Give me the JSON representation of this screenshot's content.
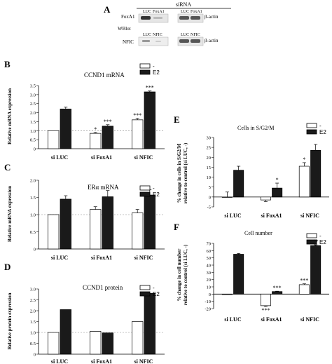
{
  "panel_a": {
    "letter": "A",
    "header": "siRNA",
    "left_label": "WBlot",
    "rows": [
      {
        "target": "FoxA1",
        "lanes": [
          "LUC",
          "FoxA1",
          "LUC",
          "FoxA1"
        ],
        "control": "β-actin"
      },
      {
        "target": "NFIC",
        "lanes": [
          "LUC",
          "NFIC",
          "LUC",
          "NFIC"
        ],
        "control": "β-actin"
      }
    ]
  },
  "legend": {
    "minus": "-",
    "e2": "E2"
  },
  "colors": {
    "control_fill": "#ffffff",
    "e2_fill": "#1a1a1a",
    "baseline": "#888888"
  },
  "chart_data": [
    {
      "id": "B",
      "type": "bar",
      "title": "CCND1 mRNA",
      "ylabel": "Relative mRNA expression",
      "ylim": [
        0,
        3.5
      ],
      "yticks": [
        "0",
        "0.5",
        "1.0",
        "1.5",
        "2.0",
        "2.5",
        "3.0",
        "3.5"
      ],
      "categories": [
        "si LUC",
        "si FoxA1",
        "si NFIC"
      ],
      "series": [
        {
          "name": "-",
          "values": [
            1.0,
            0.85,
            1.6
          ],
          "errors": [
            0.0,
            0.05,
            0.08
          ]
        },
        {
          "name": "E2",
          "values": [
            2.2,
            1.25,
            3.15
          ],
          "errors": [
            0.1,
            0.08,
            0.05
          ]
        }
      ],
      "annotations": [
        {
          "category": 1,
          "series": 0,
          "text": "*"
        },
        {
          "category": 1,
          "series": 1,
          "text": "***"
        },
        {
          "category": 2,
          "series": 0,
          "text": "***"
        },
        {
          "category": 2,
          "series": 1,
          "text": "***"
        }
      ],
      "baseline": 1.0
    },
    {
      "id": "C",
      "type": "bar",
      "title": "ERα mRNA",
      "ylabel": "Relative mRNA expression",
      "ylim": [
        0,
        2.0
      ],
      "yticks": [
        "0",
        "0.5",
        "1.0",
        "1.5",
        "2.0"
      ],
      "categories": [
        "si LUC",
        "si FoxA1",
        "si NFIC"
      ],
      "series": [
        {
          "name": "-",
          "values": [
            1.0,
            1.15,
            1.05
          ],
          "errors": [
            0.0,
            0.08,
            0.1
          ]
        },
        {
          "name": "E2",
          "values": [
            1.45,
            1.52,
            1.57
          ],
          "errors": [
            0.1,
            0.18,
            0.15
          ]
        }
      ],
      "annotations": [],
      "baseline": 1.0
    },
    {
      "id": "D",
      "type": "bar",
      "title": "CCND1 protein",
      "ylabel": "Relative protein expression",
      "ylim": [
        0,
        3.0
      ],
      "yticks": [
        "0",
        "0.5",
        "1.0",
        "1.5",
        "2.0",
        "2.5",
        "3.0"
      ],
      "categories": [
        "si LUC",
        "si FoxA1",
        "si NFIC"
      ],
      "series": [
        {
          "name": "-",
          "values": [
            1.0,
            1.05,
            1.5
          ],
          "errors": [
            0,
            0,
            0
          ]
        },
        {
          "name": "E2",
          "values": [
            2.05,
            0.98,
            2.8
          ],
          "errors": [
            0,
            0,
            0
          ]
        }
      ],
      "annotations": [],
      "baseline": 1.0
    },
    {
      "id": "E",
      "type": "bar",
      "title": "Cells in S/G2/M",
      "ylabel": "% change in cells in S/G2/M relative to control (si LUC, -)",
      "ylim": [
        -5,
        30
      ],
      "yticks": [
        "-5",
        "0",
        "5",
        "10",
        "15",
        "20",
        "25",
        "30"
      ],
      "categories": [
        "si LUC",
        "si FoxA1",
        "si NFIC"
      ],
      "series": [
        {
          "name": "-",
          "values": [
            0,
            -1.5,
            15.5
          ],
          "errors": [
            2.5,
            0.8,
            1.8
          ]
        },
        {
          "name": "E2",
          "values": [
            13.5,
            4.5,
            23.5
          ],
          "errors": [
            2.0,
            2.5,
            3.0
          ]
        }
      ],
      "annotations": [
        {
          "category": 1,
          "series": 1,
          "text": "*"
        },
        {
          "category": 2,
          "series": 0,
          "text": "*"
        }
      ],
      "baseline": null
    },
    {
      "id": "F",
      "type": "bar",
      "title": "Cell number",
      "ylabel": "% change in cell number relative to control (si LUC, -)",
      "ylim": [
        -20,
        70
      ],
      "yticks": [
        "-20",
        "-10",
        "0",
        "10",
        "20",
        "30",
        "40",
        "50",
        "60",
        "70"
      ],
      "categories": [
        "si LUC",
        "si FoxA1",
        "si NFIC"
      ],
      "series": [
        {
          "name": "-",
          "values": [
            0,
            -16,
            13
          ],
          "errors": [
            0,
            1,
            1.2
          ]
        },
        {
          "name": "E2",
          "values": [
            55,
            3.5,
            67
          ],
          "errors": [
            1,
            0.5,
            1
          ]
        }
      ],
      "annotations": [
        {
          "category": 1,
          "series": 0,
          "text": "***",
          "below": true
        },
        {
          "category": 1,
          "series": 1,
          "text": "***"
        },
        {
          "category": 2,
          "series": 0,
          "text": "***"
        },
        {
          "category": 2,
          "series": 1,
          "text": "**"
        }
      ],
      "baseline": null
    }
  ]
}
